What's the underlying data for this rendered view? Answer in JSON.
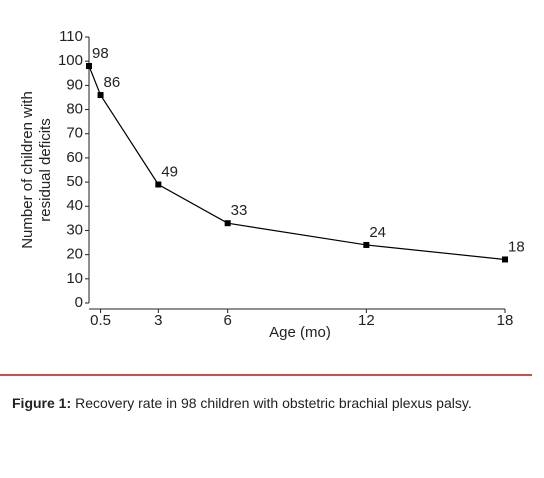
{
  "chart_data": {
    "type": "line",
    "ylabel": [
      "Number of children with",
      "residual deficits"
    ],
    "xlabel": "Age (mo)",
    "x": [
      0,
      0.5,
      3,
      6,
      12,
      18
    ],
    "series": [
      {
        "name": null,
        "color": "#000000",
        "values": [
          98,
          86,
          49,
          33,
          24,
          18
        ]
      }
    ],
    "xlim": [
      0,
      18
    ],
    "xticks": [
      0.5,
      3,
      6,
      12,
      18
    ],
    "ylim": [
      0,
      110
    ],
    "yticks": [
      0,
      10,
      20,
      30,
      40,
      50,
      60,
      70,
      80,
      90,
      100,
      110
    ],
    "grid": false
  },
  "caption": {
    "label": "Figure 1:",
    "text": "Recovery  rate in 98 children with obstetric brachial plexus palsy."
  }
}
